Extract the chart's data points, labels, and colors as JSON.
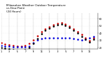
{
  "title": "Milwaukee Weather Outdoor Temperature\nvs Dew Point\n(24 Hours)",
  "title_fontsize": 3.0,
  "bg_color": "#ffffff",
  "grid_color": "#888888",
  "temp_color": "#cc0000",
  "dew_color": "#0000dd",
  "feel_color": "#000000",
  "xlim": [
    0,
    24
  ],
  "ylim": [
    18,
    68
  ],
  "temp_x": [
    0,
    1,
    2,
    3,
    4,
    5,
    6,
    7,
    8,
    9,
    10,
    11,
    12,
    13,
    14,
    15,
    16,
    17,
    18,
    19,
    20,
    21,
    22,
    23
  ],
  "temp_y": [
    27,
    25,
    24,
    23,
    22,
    22,
    23,
    26,
    31,
    37,
    42,
    46,
    49,
    52,
    54,
    55,
    53,
    50,
    46,
    42,
    38,
    34,
    30,
    34
  ],
  "dew_x": [
    0,
    1,
    2,
    3,
    4,
    5,
    6,
    7,
    8,
    9,
    10,
    11,
    12,
    13,
    14,
    15,
    16,
    17,
    18,
    19,
    20,
    21,
    22,
    23
  ],
  "dew_y": [
    23,
    22,
    22,
    21,
    21,
    21,
    21,
    22,
    27,
    31,
    33,
    34,
    34,
    34,
    34,
    34,
    34,
    34,
    33,
    32,
    31,
    32,
    34,
    36
  ],
  "feel_x": [
    0,
    1,
    2,
    3,
    4,
    5,
    6,
    7,
    8,
    9,
    10,
    11,
    12,
    13,
    14,
    15,
    16,
    17,
    18,
    19,
    20,
    21,
    22,
    23
  ],
  "feel_y": [
    20,
    19,
    18,
    17,
    16,
    16,
    17,
    20,
    26,
    33,
    39,
    44,
    47,
    50,
    52,
    53,
    51,
    48,
    44,
    40,
    36,
    32,
    28,
    32
  ],
  "marker_size": 1.8,
  "ytick_vals": [
    20,
    30,
    40,
    50,
    60
  ],
  "ytick_labels": [
    "20",
    "30",
    "40",
    "50",
    "60"
  ],
  "xtick_positions": [
    0,
    2,
    4,
    6,
    8,
    10,
    12,
    14,
    16,
    18,
    20,
    22
  ],
  "xtick_labels": [
    "1",
    "3",
    "5",
    "7",
    "9",
    "11",
    "1",
    "3",
    "5",
    "7",
    "9",
    "11"
  ]
}
